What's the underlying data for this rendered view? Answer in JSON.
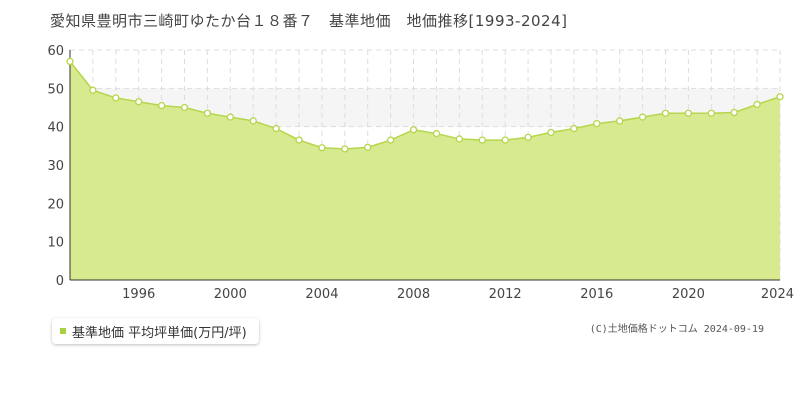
{
  "title": "愛知県豊明市三崎町ゆたか台１８番７　基準地価　地価推移[1993-2024]",
  "copyright": "(C)土地価格ドットコム 2024-09-19",
  "legend_label": "基準地価 平均坪単価(万円/坪)",
  "colors": {
    "fill": "#d7ea8f",
    "line": "#b5d64c",
    "marker": "#ffffff",
    "legend": "#aad043"
  },
  "chart_data": {
    "type": "area",
    "x": [
      1993,
      1994,
      1995,
      1996,
      1997,
      1998,
      1999,
      2000,
      2001,
      2002,
      2003,
      2004,
      2005,
      2006,
      2007,
      2008,
      2009,
      2010,
      2011,
      2012,
      2013,
      2014,
      2015,
      2016,
      2017,
      2018,
      2019,
      2020,
      2021,
      2022,
      2023,
      2024
    ],
    "series": [
      {
        "name": "基準地価 平均坪単価(万円/坪)",
        "values": [
          57.0,
          49.5,
          47.5,
          46.5,
          45.5,
          45.0,
          43.5,
          42.5,
          41.5,
          39.5,
          36.5,
          34.5,
          34.2,
          34.6,
          36.5,
          39.2,
          38.2,
          36.8,
          36.5,
          36.5,
          37.2,
          38.5,
          39.5,
          40.8,
          41.5,
          42.5,
          43.5,
          43.5,
          43.5,
          43.7,
          45.8,
          47.8
        ]
      }
    ],
    "xticks": [
      "1996",
      "2000",
      "2004",
      "2008",
      "2012",
      "2016",
      "2020",
      "2024"
    ],
    "yticks": [
      "0",
      "10",
      "20",
      "30",
      "40",
      "50",
      "60"
    ],
    "xlim": [
      1993,
      2024
    ],
    "ylim": [
      0,
      60
    ],
    "grid": true
  }
}
